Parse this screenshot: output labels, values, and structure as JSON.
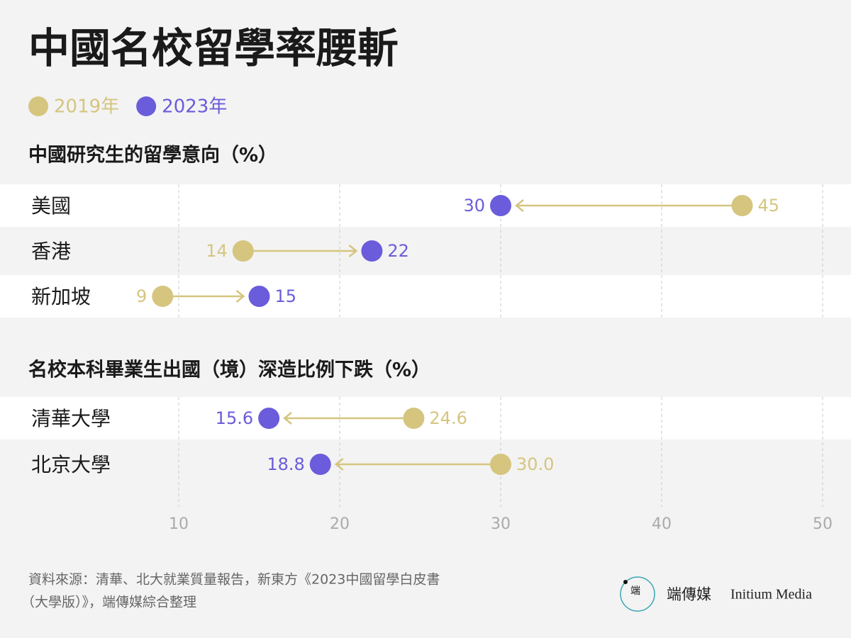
{
  "title": "中國名校留學率腰斬",
  "legend": [
    {
      "name": "2019年",
      "color": "#d5c57f"
    },
    {
      "name": "2023年",
      "color": "#6a5cdb"
    }
  ],
  "chart_data": [
    {
      "type": "dumbbell",
      "subtitle": "中國研究生的留學意向（%）",
      "categories": [
        "美國",
        "香港",
        "新加坡"
      ],
      "series": [
        {
          "color": "#d5c57f",
          "values": [
            45,
            14,
            9
          ]
        },
        {
          "color": "#6a5cdb",
          "values": [
            30,
            22,
            15
          ]
        }
      ],
      "xlim": [
        10,
        50
      ],
      "xticks": [
        10,
        20,
        30,
        40,
        50
      ],
      "grid": true
    },
    {
      "type": "dumbbell",
      "subtitle": "名校本科畢業生出國（境）深造比例下跌（%）",
      "categories": [
        "清華大學",
        "北京大學"
      ],
      "series": [
        {
          "color": "#d5c57f",
          "values": [
            24.6,
            30.0
          ],
          "value_labels": [
            "24.6",
            "30.0"
          ]
        },
        {
          "color": "#6a5cdb",
          "values": [
            15.6,
            18.8
          ]
        }
      ],
      "xlim": [
        10,
        50
      ],
      "xticks": [
        10,
        20,
        30,
        40,
        50
      ],
      "grid": true
    }
  ],
  "footer": {
    "source": [
      "資料來源：清華、北大就業質量報告，新東方《2023中國留學白皮書",
      "（大學版）》，端傳媒綜合整理"
    ],
    "brand": "端傳媒",
    "brand_en": "Initium Media",
    "logo": "端"
  }
}
